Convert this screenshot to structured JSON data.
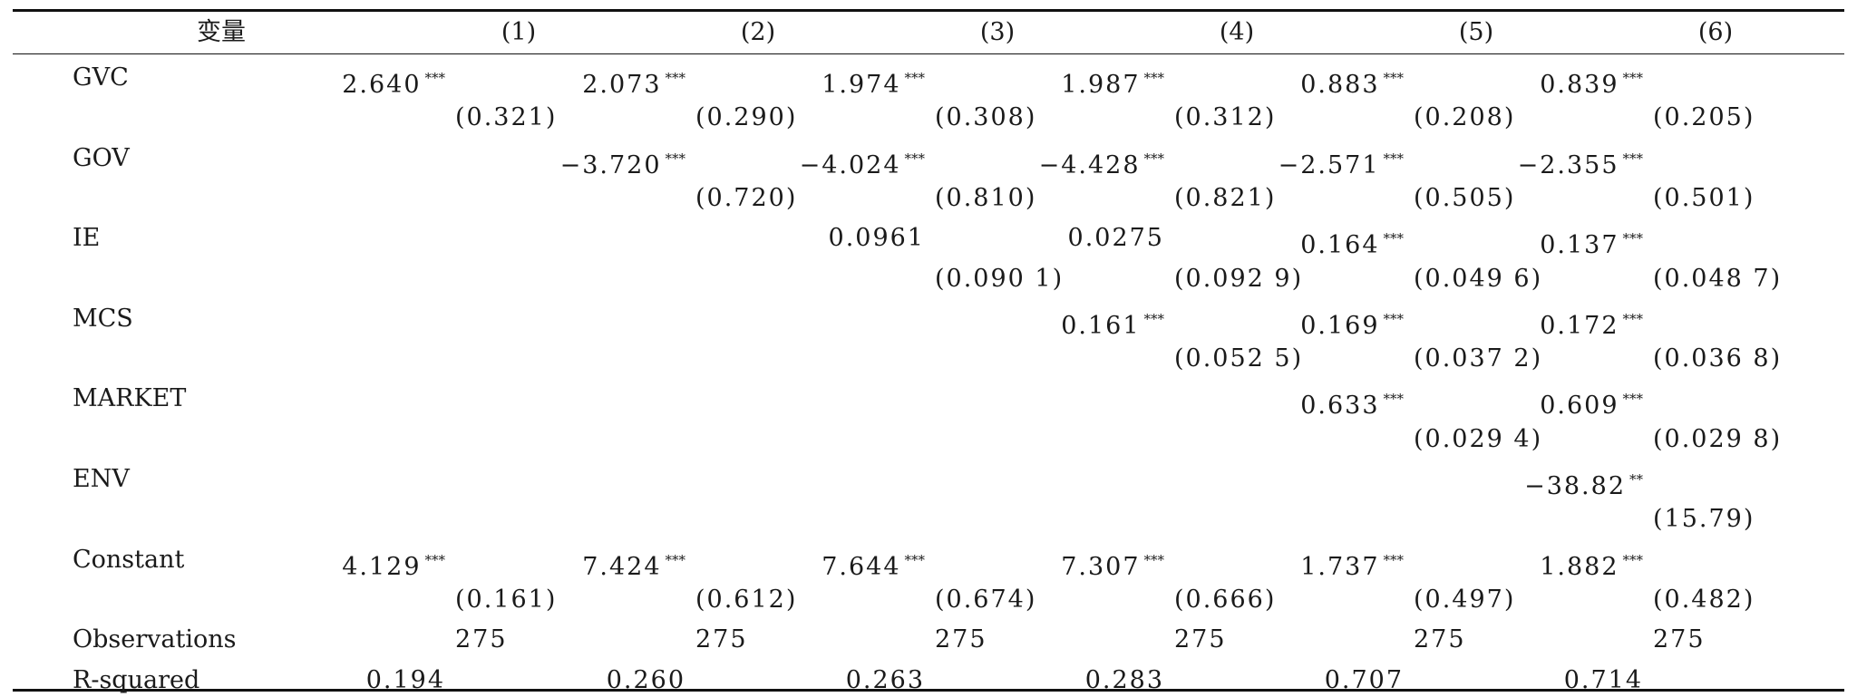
{
  "header": {
    "variable": "变量",
    "columns": [
      "(1)",
      "(2)",
      "(3)",
      "(4)",
      "(5)",
      "(6)"
    ]
  },
  "rows": [
    {
      "label": "GVC",
      "coef": [
        {
          "v": "2.640",
          "s": "***"
        },
        {
          "v": "2.073",
          "s": "***"
        },
        {
          "v": "1.974",
          "s": "***"
        },
        {
          "v": "1.987",
          "s": "***"
        },
        {
          "v": "0.883",
          "s": "***"
        },
        {
          "v": "0.839",
          "s": "***"
        }
      ],
      "se": [
        "(0.321)",
        "(0.290)",
        "(0.308)",
        "(0.312)",
        "(0.208)",
        "(0.205)"
      ]
    },
    {
      "label": "GOV",
      "coef": [
        {
          "v": "",
          "s": ""
        },
        {
          "v": "−3.720",
          "s": "***"
        },
        {
          "v": "−4.024",
          "s": "***"
        },
        {
          "v": "−4.428",
          "s": "***"
        },
        {
          "v": "−2.571",
          "s": "***"
        },
        {
          "v": "−2.355",
          "s": "***"
        }
      ],
      "se": [
        "",
        "(0.720)",
        "(0.810)",
        "(0.821)",
        "(0.505)",
        "(0.501)"
      ]
    },
    {
      "label": "IE",
      "coef": [
        {
          "v": "",
          "s": ""
        },
        {
          "v": "",
          "s": ""
        },
        {
          "v": "0.0961",
          "s": ""
        },
        {
          "v": "0.0275",
          "s": ""
        },
        {
          "v": "0.164",
          "s": "***"
        },
        {
          "v": "0.137",
          "s": "***"
        }
      ],
      "se": [
        "",
        "",
        "(0.090 1)",
        "(0.092 9)",
        "(0.049 6)",
        "(0.048 7)"
      ]
    },
    {
      "label": "MCS",
      "coef": [
        {
          "v": "",
          "s": ""
        },
        {
          "v": "",
          "s": ""
        },
        {
          "v": "",
          "s": ""
        },
        {
          "v": "0.161",
          "s": "***"
        },
        {
          "v": "0.169",
          "s": "***"
        },
        {
          "v": "0.172",
          "s": "***"
        }
      ],
      "se": [
        "",
        "",
        "",
        "(0.052 5)",
        "(0.037 2)",
        "(0.036 8)"
      ]
    },
    {
      "label": "MARKET",
      "coef": [
        {
          "v": "",
          "s": ""
        },
        {
          "v": "",
          "s": ""
        },
        {
          "v": "",
          "s": ""
        },
        {
          "v": "",
          "s": ""
        },
        {
          "v": "0.633",
          "s": "***"
        },
        {
          "v": "0.609",
          "s": "***"
        }
      ],
      "se": [
        "",
        "",
        "",
        "",
        "(0.029 4)",
        "(0.029 8)"
      ]
    },
    {
      "label": "ENV",
      "coef": [
        {
          "v": "",
          "s": ""
        },
        {
          "v": "",
          "s": ""
        },
        {
          "v": "",
          "s": ""
        },
        {
          "v": "",
          "s": ""
        },
        {
          "v": "",
          "s": ""
        },
        {
          "v": "−38.82",
          "s": "**"
        }
      ],
      "se": [
        "",
        "",
        "",
        "",
        "",
        "(15.79)"
      ]
    },
    {
      "label": "Constant",
      "coef": [
        {
          "v": "4.129",
          "s": "***"
        },
        {
          "v": "7.424",
          "s": "***"
        },
        {
          "v": "7.644",
          "s": "***"
        },
        {
          "v": "7.307",
          "s": "***"
        },
        {
          "v": "1.737",
          "s": "***"
        },
        {
          "v": "1.882",
          "s": "***"
        }
      ],
      "se": [
        "(0.161)",
        "(0.612)",
        "(0.674)",
        "(0.666)",
        "(0.497)",
        "(0.482)"
      ]
    }
  ],
  "observations": {
    "label": "Observations",
    "values": [
      "275",
      "275",
      "275",
      "275",
      "275",
      "275"
    ]
  },
  "rsquared": {
    "label": "R-squared",
    "values": [
      "0.194",
      "0.260",
      "0.263",
      "0.283",
      "0.707",
      "0.714"
    ]
  }
}
